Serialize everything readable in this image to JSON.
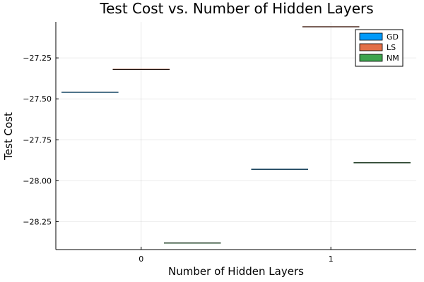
{
  "chart_data": {
    "type": "box",
    "title": "Test Cost vs. Number of Hidden Layers",
    "xlabel": "Number of Hidden Layers",
    "ylabel": "Test Cost",
    "xticks": [
      0,
      1
    ],
    "xlim": [
      -0.45,
      1.45
    ],
    "yticks": [
      -27.25,
      -27.5,
      -27.75,
      -28.0,
      -28.25
    ],
    "ytick_labels": [
      "−27.25",
      "−27.50",
      "−27.75",
      "−28.00",
      "−28.25"
    ],
    "ylim": [
      -28.42,
      -27.03
    ],
    "grid": true,
    "legend_position": "top-right",
    "box_halfwidth": 0.15,
    "series": [
      {
        "name": "GD",
        "color": "#009AFA",
        "points": [
          {
            "x": -0.27,
            "value": -27.46
          },
          {
            "x": 0.73,
            "value": -27.93
          }
        ]
      },
      {
        "name": "LS",
        "color": "#E36F47",
        "points": [
          {
            "x": 0.0,
            "value": -27.32
          },
          {
            "x": 1.0,
            "value": -27.06
          }
        ]
      },
      {
        "name": "NM",
        "color": "#3EA44E",
        "points": [
          {
            "x": 0.27,
            "value": -28.38
          },
          {
            "x": 1.27,
            "value": -27.89
          }
        ]
      }
    ]
  }
}
